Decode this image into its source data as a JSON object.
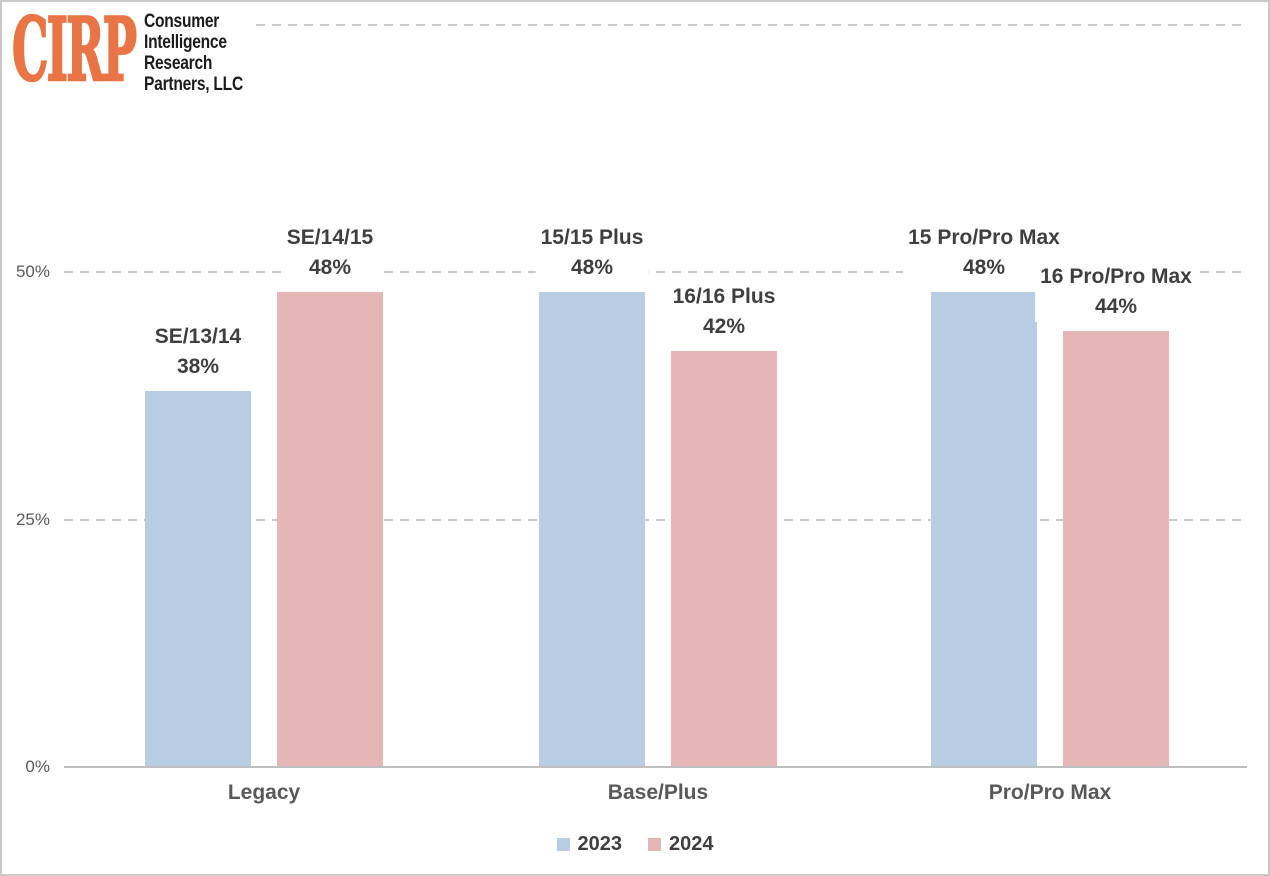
{
  "logo": {
    "acronym": "CIRP",
    "brand_color": "#E97445",
    "text_color": "#1B1B1B",
    "name_lines": [
      "Consumer",
      "Intelligence",
      "Research",
      "Partners, LLC"
    ]
  },
  "chart_data": {
    "type": "bar",
    "categories": [
      "Legacy",
      "Base/Plus",
      "Pro/Pro Max"
    ],
    "series": [
      {
        "name": "2023",
        "color": "#B8CCE3",
        "values": [
          38,
          48,
          48
        ],
        "point_labels": [
          "SE/13/14",
          "15/15 Plus",
          "15 Pro/Pro Max"
        ]
      },
      {
        "name": "2024",
        "color": "#E5B6B5",
        "values": [
          48,
          42,
          44
        ],
        "point_labels": [
          "SE/14/15",
          "16/16 Plus",
          "16 Pro/Pro Max"
        ]
      }
    ],
    "value_suffix": "%",
    "ytick_labels": [
      "0%",
      "25%",
      "50%"
    ],
    "ytick_values": [
      0,
      25,
      50
    ],
    "ylim": [
      0,
      75
    ],
    "grid": "horizontal-dashed",
    "legend_position": "bottom-center",
    "colors": {
      "gridline": "#C9C9C9",
      "axis_line": "#BFBFBF",
      "data_label": "#3F3F3F",
      "tick_label": "#595959",
      "category_label": "#595959",
      "legend_label": "#3F3F3F"
    }
  }
}
